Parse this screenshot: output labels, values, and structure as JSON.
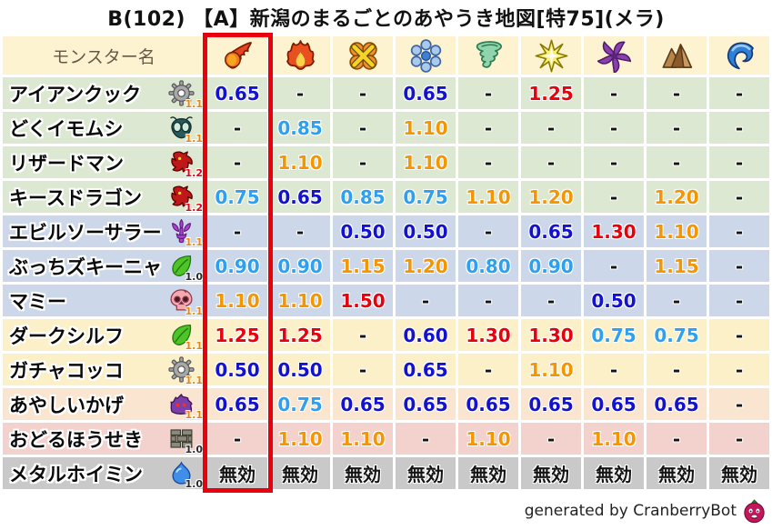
{
  "title": "B(102) 【A】新潟のまるごとのあやうき地図[特75](メラ)",
  "header": {
    "monster_name_label": "モンスター名"
  },
  "highlight": {
    "column_index": 0,
    "frame_color": "#e8000d"
  },
  "value_colors": {
    "strong_resist": "#1212cf",
    "mild_resist": "#2da0f2",
    "weak": "#f59600",
    "very_weak": "#e8000d",
    "neutral": "#141414"
  },
  "row_group_colors": {
    "green": "#dce8d1",
    "blue": "#ccd8ea",
    "yellow": "#fbf0c8",
    "peach": "#fae6d0",
    "pink": "#f3d1cd",
    "gray": "#c9c9c9"
  },
  "badge_colors": {
    "1.0": "#2a2a2a",
    "1.1": "#f08300",
    "1.2": "#e60012"
  },
  "header_bg": "#fdf3d0",
  "chart_data": {
    "type": "table",
    "title": "B(102) 【A】新潟のまるごとのあやうき地図[特75](メラ)",
    "columns": [
      {
        "icon": "mera-fireball-icon"
      },
      {
        "icon": "gira-flame-icon"
      },
      {
        "icon": "io-explosion-icon"
      },
      {
        "icon": "hyado-snowflake-icon"
      },
      {
        "icon": "bagi-tornado-icon"
      },
      {
        "icon": "dein-spark-icon"
      },
      {
        "icon": "dorma-pinwheel-icon"
      },
      {
        "icon": "jibaria-mountain-icon"
      },
      {
        "icon": "water-wave-icon"
      }
    ],
    "rows": [
      {
        "name": "アイアンクック",
        "icon": "gear-icon",
        "badge": "1.1",
        "group": "green",
        "values": [
          "0.65",
          "-",
          "-",
          "0.65",
          "-",
          "1.25",
          "-",
          "-",
          "-"
        ]
      },
      {
        "name": "どくイモムシ",
        "icon": "bug-icon",
        "badge": "1.1",
        "group": "green",
        "values": [
          "-",
          "0.85",
          "-",
          "1.10",
          "-",
          "-",
          "-",
          "-",
          "-"
        ]
      },
      {
        "name": "リザードマン",
        "icon": "dragon-head-icon",
        "badge": "1.2",
        "group": "green",
        "values": [
          "-",
          "1.10",
          "-",
          "1.10",
          "-",
          "-",
          "-",
          "-",
          "-"
        ]
      },
      {
        "name": "キースドラゴン",
        "icon": "dragon-head-icon",
        "badge": "1.2",
        "group": "green",
        "values": [
          "0.75",
          "0.65",
          "0.85",
          "0.75",
          "1.10",
          "1.20",
          "-",
          "1.20",
          "-"
        ]
      },
      {
        "name": "エビルソーサラー",
        "icon": "trident-icon",
        "badge": "1.1",
        "group": "blue",
        "values": [
          "-",
          "-",
          "0.50",
          "0.50",
          "-",
          "0.65",
          "1.30",
          "1.10",
          "-"
        ]
      },
      {
        "name": "ぶっちズキーニャ",
        "icon": "leaf-icon",
        "badge": "1.0",
        "group": "blue",
        "values": [
          "0.90",
          "0.90",
          "1.15",
          "1.20",
          "0.80",
          "0.90",
          "-",
          "1.15",
          "-"
        ]
      },
      {
        "name": "マミー",
        "icon": "skull-icon",
        "badge": "1.1",
        "group": "blue",
        "values": [
          "1.10",
          "1.10",
          "1.50",
          "-",
          "-",
          "-",
          "0.50",
          "-",
          "-"
        ]
      },
      {
        "name": "ダークシルフ",
        "icon": "leaf-icon",
        "badge": "1.1",
        "group": "yellow",
        "values": [
          "1.25",
          "1.25",
          "-",
          "0.60",
          "1.30",
          "1.30",
          "0.75",
          "0.75",
          "-"
        ]
      },
      {
        "name": "ガチャコッコ",
        "icon": "gear-icon",
        "badge": "1.1",
        "group": "yellow",
        "values": [
          "0.50",
          "0.50",
          "-",
          "0.65",
          "-",
          "1.10",
          "-",
          "-",
          "-"
        ]
      },
      {
        "name": "あやしいかげ",
        "icon": "shadow-blob-icon",
        "badge": "1.1",
        "group": "peach",
        "values": [
          "0.65",
          "0.75",
          "0.65",
          "0.65",
          "0.65",
          "0.65",
          "0.65",
          "0.65",
          "-"
        ]
      },
      {
        "name": "おどるほうせき",
        "icon": "brick-wall-icon",
        "badge": "1.0",
        "group": "pink",
        "values": [
          "-",
          "1.10",
          "1.10",
          "-",
          "1.10",
          "-",
          "1.10",
          "-",
          "-"
        ]
      },
      {
        "name": "メタルホイミン",
        "icon": "slime-icon",
        "badge": "1.0",
        "group": "gray",
        "values": [
          "無効",
          "無効",
          "無効",
          "無効",
          "無効",
          "無効",
          "無効",
          "無効",
          "無効"
        ]
      }
    ]
  },
  "footer": {
    "credit": "generated by CranberryBot",
    "icon": "cranberry-bot-icon"
  }
}
